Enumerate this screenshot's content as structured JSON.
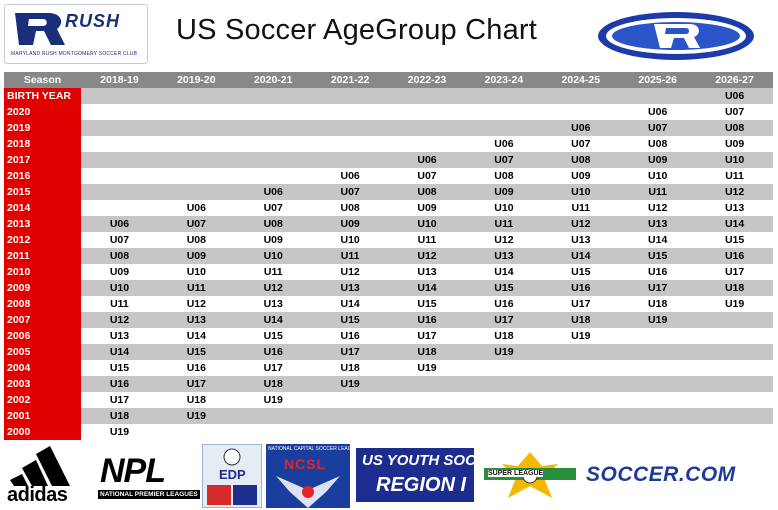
{
  "header": {
    "title": "US Soccer AgeGroup Chart",
    "club_logo": {
      "wordmark": "RUSH",
      "tagline": "MARYLAND RUSH MONTGOMERY SOCCER CLUB"
    }
  },
  "table": {
    "corner_label": "Season",
    "seasons": [
      "2018-19",
      "2019-20",
      "2020-21",
      "2021-22",
      "2022-23",
      "2023-24",
      "2024-25",
      "2025-26",
      "2026-27"
    ],
    "rows": [
      {
        "year": "BIRTH YEAR",
        "cells": [
          "",
          "",
          "",
          "",
          "",
          "",
          "",
          "",
          "U06"
        ]
      },
      {
        "year": "2020",
        "cells": [
          "",
          "",
          "",
          "",
          "",
          "",
          "",
          "U06",
          "U07"
        ]
      },
      {
        "year": "2019",
        "cells": [
          "",
          "",
          "",
          "",
          "",
          "",
          "U06",
          "U07",
          "U08"
        ]
      },
      {
        "year": "2018",
        "cells": [
          "",
          "",
          "",
          "",
          "",
          "U06",
          "U07",
          "U08",
          "U09"
        ]
      },
      {
        "year": "2017",
        "cells": [
          "",
          "",
          "",
          "",
          "U06",
          "U07",
          "U08",
          "U09",
          "U10"
        ]
      },
      {
        "year": "2016",
        "cells": [
          "",
          "",
          "",
          "U06",
          "U07",
          "U08",
          "U09",
          "U10",
          "U11"
        ]
      },
      {
        "year": "2015",
        "cells": [
          "",
          "",
          "U06",
          "U07",
          "U08",
          "U09",
          "U10",
          "U11",
          "U12"
        ]
      },
      {
        "year": "2014",
        "cells": [
          "",
          "U06",
          "U07",
          "U08",
          "U09",
          "U10",
          "U11",
          "U12",
          "U13"
        ]
      },
      {
        "year": "2013",
        "cells": [
          "U06",
          "U07",
          "U08",
          "U09",
          "U10",
          "U11",
          "U12",
          "U13",
          "U14"
        ]
      },
      {
        "year": "2012",
        "cells": [
          "U07",
          "U08",
          "U09",
          "U10",
          "U11",
          "U12",
          "U13",
          "U14",
          "U15"
        ]
      },
      {
        "year": "2011",
        "cells": [
          "U08",
          "U09",
          "U10",
          "U11",
          "U12",
          "U13",
          "U14",
          "U15",
          "U16"
        ]
      },
      {
        "year": "2010",
        "cells": [
          "U09",
          "U10",
          "U11",
          "U12",
          "U13",
          "U14",
          "U15",
          "U16",
          "U17"
        ]
      },
      {
        "year": "2009",
        "cells": [
          "U10",
          "U11",
          "U12",
          "U13",
          "U14",
          "U15",
          "U16",
          "U17",
          "U18"
        ]
      },
      {
        "year": "2008",
        "cells": [
          "U11",
          "U12",
          "U13",
          "U14",
          "U15",
          "U16",
          "U17",
          "U18",
          "U19"
        ]
      },
      {
        "year": "2007",
        "cells": [
          "U12",
          "U13",
          "U14",
          "U15",
          "U16",
          "U17",
          "U18",
          "U19",
          ""
        ]
      },
      {
        "year": "2006",
        "cells": [
          "U13",
          "U14",
          "U15",
          "U16",
          "U17",
          "U18",
          "U19",
          "",
          ""
        ]
      },
      {
        "year": "2005",
        "cells": [
          "U14",
          "U15",
          "U16",
          "U17",
          "U18",
          "U19",
          "",
          "",
          ""
        ]
      },
      {
        "year": "2004",
        "cells": [
          "U15",
          "U16",
          "U17",
          "U18",
          "U19",
          "",
          "",
          "",
          ""
        ]
      },
      {
        "year": "2003",
        "cells": [
          "U16",
          "U17",
          "U18",
          "U19",
          "",
          "",
          "",
          "",
          ""
        ]
      },
      {
        "year": "2002",
        "cells": [
          "U17",
          "U18",
          "U19",
          "",
          "",
          "",
          "",
          "",
          ""
        ]
      },
      {
        "year": "2001",
        "cells": [
          "U18",
          "U19",
          "",
          "",
          "",
          "",
          "",
          "",
          ""
        ]
      },
      {
        "year": "2000",
        "cells": [
          "U19",
          "",
          "",
          "",
          "",
          "",
          "",
          "",
          ""
        ]
      }
    ]
  },
  "sponsors": {
    "adidas": "adidas",
    "npl": {
      "big": "NPL",
      "small": "NATIONAL PREMIER LEAGUES"
    },
    "edp": "EDP",
    "ncsl": {
      "top": "NATIONAL CAPITAL SOCCER LEAGUE",
      "mid": "NCSL"
    },
    "usys": {
      "line1": "US YOUTH SOCCER",
      "line2": "REGION I"
    },
    "super_league": "SUPER LEAGUE",
    "soccer_com": "SOCCER.COM"
  },
  "colors": {
    "year_column": "#e00000",
    "header_row": "#888888",
    "alt_row": "#c6c6c6",
    "brand_blue": "#1a2f7a"
  }
}
